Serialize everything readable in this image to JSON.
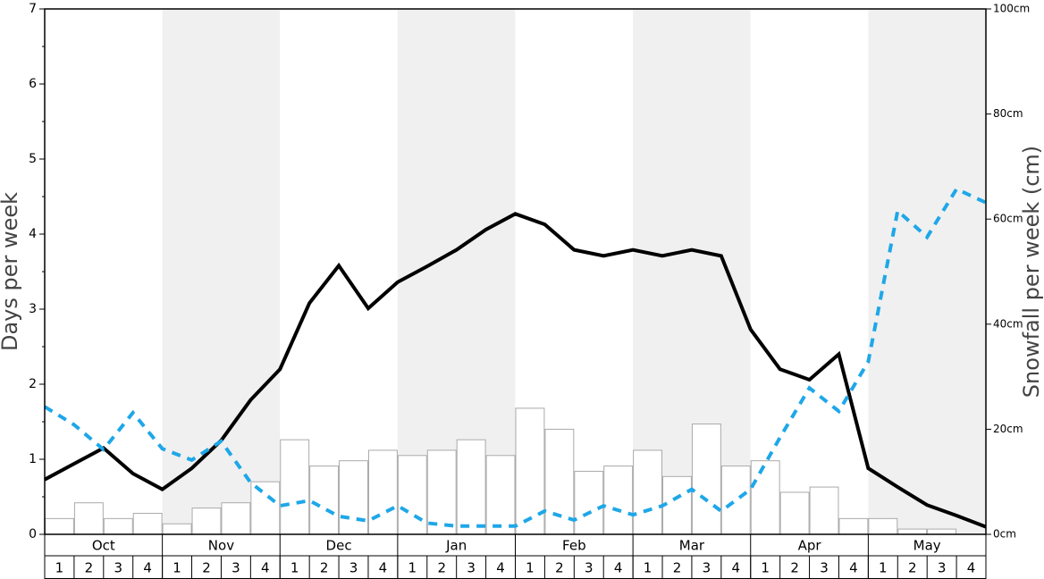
{
  "chart_data": {
    "type": "combo",
    "y_label": "Days per week",
    "y2_label": "Snowfall per week (cm)",
    "months": [
      "Oct",
      "Nov",
      "Dec",
      "Jan",
      "Feb",
      "Mar",
      "Apr",
      "May"
    ],
    "band_colors": [
      "#ffffff",
      "#f0f0f0",
      "#ffffff",
      "#f0f0f0",
      "#ffffff",
      "#f0f0f0",
      "#ffffff",
      "#f0f0f0"
    ],
    "categories": [
      "1",
      "2",
      "3",
      "4",
      "1",
      "2",
      "3",
      "4",
      "1",
      "2",
      "3",
      "4",
      "1",
      "2",
      "3",
      "4",
      "1",
      "2",
      "3",
      "4",
      "1",
      "2",
      "3",
      "4",
      "1",
      "2",
      "3",
      "4",
      "1",
      "2",
      "3",
      "4"
    ],
    "x": [
      0,
      1,
      2,
      3,
      4,
      5,
      6,
      7,
      8,
      9,
      10,
      11,
      12,
      13,
      14,
      15,
      16,
      17,
      18,
      19,
      20,
      21,
      22,
      23,
      24,
      25,
      26,
      27,
      28,
      29,
      30,
      31,
      32
    ],
    "xlim": [
      0,
      32
    ],
    "ylim": [
      0,
      7
    ],
    "yticks": [
      0,
      1,
      2,
      3,
      4,
      5,
      6,
      7
    ],
    "yminorticks": [
      0.5,
      1.5,
      2.5,
      3.5,
      4.5,
      5.5,
      6.5
    ],
    "y2lim": [
      0,
      100
    ],
    "y2ticks": [
      {
        "value": 0,
        "label": "0cm"
      },
      {
        "value": 20,
        "label": "20cm"
      },
      {
        "value": 40,
        "label": "40cm"
      },
      {
        "value": 60,
        "label": "60cm"
      },
      {
        "value": 80,
        "label": "80cm"
      },
      {
        "value": 100,
        "label": "100cm"
      }
    ],
    "series": [
      {
        "type": "bar",
        "axis": "y2",
        "color": "#ffffff",
        "edge_color": "#aaaaaa",
        "values": [
          3,
          6,
          3,
          4,
          2,
          5,
          6,
          10,
          18,
          13,
          14,
          16,
          15,
          16,
          18,
          15,
          24,
          20,
          12,
          13,
          16,
          11,
          21,
          13,
          14,
          8,
          9,
          3,
          3,
          1,
          1,
          0
        ]
      },
      {
        "type": "line",
        "axis": "y",
        "color": "#000000",
        "dashed": false,
        "values": [
          0.73,
          0.94,
          1.15,
          0.81,
          0.6,
          0.88,
          1.25,
          1.79,
          2.2,
          3.08,
          3.58,
          3.01,
          3.36,
          3.57,
          3.79,
          4.06,
          4.27,
          4.13,
          3.79,
          3.71,
          3.79,
          3.71,
          3.79,
          3.71,
          2.73,
          2.2,
          2.06,
          2.4,
          0.88,
          0.63,
          0.39,
          0.25,
          0.1
        ]
      },
      {
        "type": "line",
        "axis": "y",
        "color": "#1ea7e8",
        "dashed": true,
        "values": [
          1.7,
          1.46,
          1.13,
          1.62,
          1.14,
          0.99,
          1.24,
          0.69,
          0.38,
          0.45,
          0.24,
          0.18,
          0.38,
          0.15,
          0.11,
          0.11,
          0.11,
          0.31,
          0.19,
          0.38,
          0.26,
          0.38,
          0.6,
          0.31,
          0.6,
          1.29,
          1.95,
          1.64,
          2.3,
          4.31,
          3.96,
          4.6,
          4.42
        ]
      }
    ]
  }
}
